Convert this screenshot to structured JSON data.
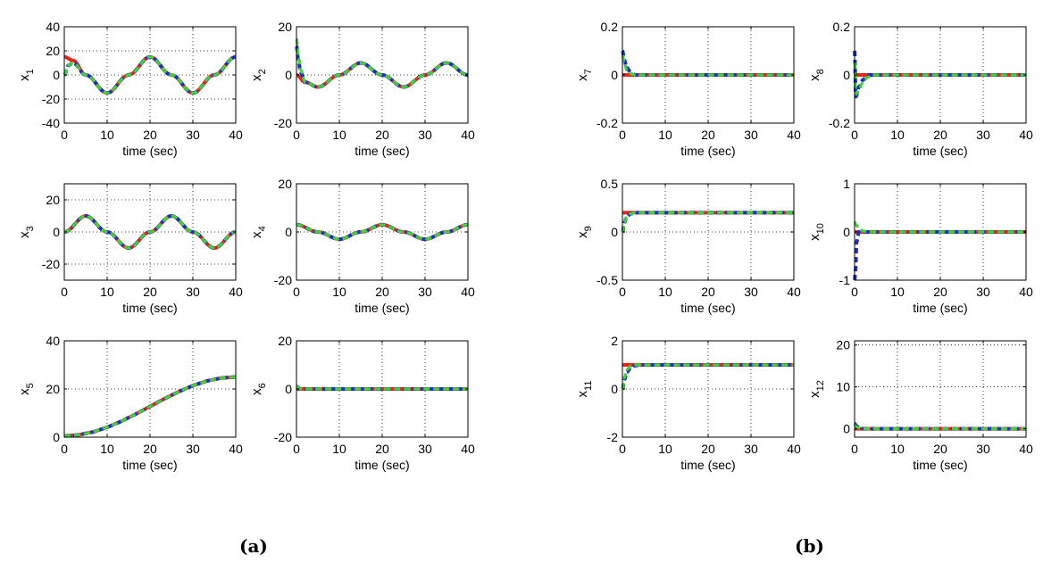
{
  "captions": [
    "(a)",
    "(b)"
  ],
  "colors": {
    "red": "#e8231c",
    "blue": "#1c2ec8",
    "green": "#3fd13a",
    "grid": "#000000",
    "text": "#000000"
  },
  "chart_data": [
    {
      "type": "line",
      "ylabel": "x",
      "sub": "1",
      "xlabel": "time (sec)",
      "xlim": [
        0,
        40
      ],
      "ylim": [
        -40,
        40
      ],
      "xticks": [
        0,
        10,
        20,
        30,
        40
      ],
      "yticks": [
        -40,
        -20,
        0,
        20,
        40
      ],
      "grid": true,
      "series": [
        {
          "values_x": [
            0,
            2,
            5,
            10,
            15,
            20,
            25,
            30,
            35,
            40
          ],
          "values_y": [
            15,
            12.1,
            0,
            -15,
            0,
            15,
            0,
            -15,
            0,
            15
          ]
        },
        {
          "values_x": [
            0,
            1,
            2,
            5,
            10,
            15,
            20,
            25,
            30,
            35,
            40
          ],
          "values_y": [
            0,
            8,
            10,
            0,
            -15,
            0,
            15,
            0,
            -15,
            0,
            15
          ]
        },
        {
          "values_x": [
            0,
            1,
            2,
            5,
            10,
            15,
            20,
            25,
            30,
            35,
            40
          ],
          "values_y": [
            0,
            8,
            10,
            0,
            -15,
            0,
            15,
            0,
            -15,
            0,
            15
          ]
        }
      ]
    },
    {
      "type": "line",
      "ylabel": "x",
      "sub": "2",
      "xlabel": "time (sec)",
      "xlim": [
        0,
        40
      ],
      "ylim": [
        -20,
        20
      ],
      "xticks": [
        0,
        10,
        20
      ],
      "xticks_extra": [
        30,
        40
      ],
      "yticks": [
        -20,
        0,
        20
      ],
      "grid": true,
      "series": [
        {
          "values_x": [
            0,
            2,
            5,
            10,
            15,
            20,
            25,
            30,
            35,
            40
          ],
          "values_y": [
            0,
            -3,
            -5,
            0,
            5,
            0,
            -5,
            0,
            5,
            0
          ]
        },
        {
          "values_x": [
            0,
            0.5,
            1,
            2,
            5,
            10,
            15,
            20,
            25,
            30,
            35,
            40
          ],
          "values_y": [
            12,
            5,
            1,
            -3,
            -5,
            0,
            5,
            0,
            -5,
            0,
            5,
            0
          ]
        },
        {
          "values_x": [
            0,
            0.5,
            1,
            2,
            5,
            10,
            15,
            20,
            25,
            30,
            35,
            40
          ],
          "values_y": [
            15,
            7,
            2,
            -3,
            -5,
            0,
            5,
            0,
            -5,
            0,
            5,
            0
          ]
        }
      ]
    },
    {
      "type": "line",
      "ylabel": "x",
      "sub": "3",
      "xlabel": "time (sec)",
      "xlim": [
        0,
        40
      ],
      "ylim": [
        -30,
        30
      ],
      "xticks": [
        0,
        10,
        20,
        30,
        40
      ],
      "yticks": [
        -20,
        0,
        20
      ],
      "grid": true,
      "series": [
        {
          "values_x": [
            0,
            5,
            10,
            15,
            20,
            25,
            30,
            35,
            40
          ],
          "values_y": [
            0,
            10,
            0,
            -10,
            0,
            10,
            0,
            -10,
            0
          ]
        },
        {
          "values_x": [
            0,
            5,
            10,
            15,
            20,
            25,
            30,
            35,
            40
          ],
          "values_y": [
            0,
            10,
            0,
            -10,
            0,
            10,
            0,
            -10,
            0
          ]
        },
        {
          "values_x": [
            0,
            5,
            10,
            15,
            20,
            25,
            30,
            35,
            40
          ],
          "values_y": [
            0,
            10,
            0,
            -10,
            0,
            10,
            0,
            -10,
            0
          ]
        }
      ]
    },
    {
      "type": "line",
      "ylabel": "x",
      "sub": "4",
      "xlabel": "time (sec)",
      "xlim": [
        0,
        40
      ],
      "ylim": [
        -20,
        20
      ],
      "xticks": [
        0,
        10,
        20,
        30,
        40
      ],
      "yticks": [
        -20,
        0,
        20
      ],
      "grid": true,
      "series": [
        {
          "values_x": [
            0,
            5,
            10,
            15,
            20,
            25,
            30,
            35,
            40
          ],
          "values_y": [
            3,
            0,
            -3,
            0,
            3,
            0,
            -3,
            0,
            3
          ]
        },
        {
          "values_x": [
            0,
            5,
            10,
            15,
            20,
            25,
            30,
            35,
            40
          ],
          "values_y": [
            3,
            0,
            -3,
            0,
            3,
            0,
            -3,
            0,
            3
          ]
        },
        {
          "values_x": [
            0,
            5,
            10,
            15,
            20,
            25,
            30,
            35,
            40
          ],
          "values_y": [
            3,
            0,
            -3,
            0,
            3,
            0,
            -3,
            0,
            3
          ]
        }
      ]
    },
    {
      "type": "line",
      "ylabel": "x",
      "sub": "5",
      "xlabel": "time (sec)",
      "xlim": [
        0,
        40
      ],
      "ylim": [
        0,
        40
      ],
      "xticks": [
        0,
        10,
        20,
        30,
        40
      ],
      "yticks": [
        0,
        20,
        40
      ],
      "grid": true,
      "series": [
        {
          "values_x": [
            0,
            40
          ],
          "values_y": [
            0.5,
            25
          ]
        },
        {
          "values_x": [
            0,
            40
          ],
          "values_y": [
            0.5,
            25
          ]
        },
        {
          "values_x": [
            0,
            40
          ],
          "values_y": [
            0.5,
            25
          ]
        }
      ]
    },
    {
      "type": "line",
      "ylabel": "x",
      "sub": "6",
      "xlabel": "time (sec)",
      "xlim": [
        0,
        40
      ],
      "ylim": [
        -20,
        20
      ],
      "xticks": [
        0,
        10,
        20,
        30,
        40
      ],
      "yticks": [
        -20,
        0,
        20
      ],
      "grid": true,
      "series": [
        {
          "values_x": [
            0,
            40
          ],
          "values_y": [
            0,
            0
          ]
        },
        {
          "values_x": [
            0,
            1,
            40
          ],
          "values_y": [
            1,
            0,
            0
          ]
        },
        {
          "values_x": [
            0,
            1,
            40
          ],
          "values_y": [
            1,
            0,
            0
          ]
        }
      ]
    },
    {
      "type": "line",
      "ylabel": "x",
      "sub": "7",
      "xlabel": "time (sec)",
      "xlim": [
        0,
        40
      ],
      "ylim": [
        -0.2,
        0.2
      ],
      "xticks": [
        0,
        10,
        20,
        30,
        40
      ],
      "yticks": [
        -0.2,
        0,
        0.2
      ],
      "grid": true,
      "series": [
        {
          "values_x": [
            0,
            40
          ],
          "values_y": [
            0,
            0
          ]
        },
        {
          "values_x": [
            0,
            0.5,
            1,
            2,
            3,
            40
          ],
          "values_y": [
            0.1,
            0.06,
            0.03,
            0.01,
            0,
            0
          ]
        },
        {
          "values_x": [
            0,
            0.5,
            1,
            2,
            3,
            40
          ],
          "values_y": [
            0.08,
            0.05,
            0.02,
            0.005,
            0,
            0
          ]
        }
      ]
    },
    {
      "type": "line",
      "ylabel": "x",
      "sub": "8",
      "xlabel": "time (sec)",
      "xlim": [
        0,
        40
      ],
      "ylim": [
        -0.2,
        0.2
      ],
      "xticks": [
        0,
        10,
        20,
        30,
        40
      ],
      "yticks": [
        -0.2,
        0,
        0.2
      ],
      "grid": true,
      "series": [
        {
          "values_x": [
            0,
            40
          ],
          "values_y": [
            0,
            0
          ]
        },
        {
          "values_x": [
            0,
            0.3,
            1,
            2,
            3,
            40
          ],
          "values_y": [
            0.1,
            -0.09,
            -0.05,
            -0.02,
            0,
            0
          ]
        },
        {
          "values_x": [
            0,
            0.3,
            1,
            2,
            3,
            4,
            40
          ],
          "values_y": [
            0.05,
            -0.08,
            -0.06,
            -0.03,
            -0.01,
            0,
            0
          ]
        }
      ]
    },
    {
      "type": "line",
      "ylabel": "x",
      "sub": "9",
      "xlabel": "time (sec)",
      "xlim": [
        0,
        40
      ],
      "ylim": [
        -0.5,
        0.5
      ],
      "xticks": [
        0,
        10,
        20,
        30,
        40
      ],
      "yticks": [
        -0.5,
        0,
        0.5
      ],
      "grid": true,
      "series": [
        {
          "values_x": [
            0,
            40
          ],
          "values_y": [
            0.2,
            0.2
          ]
        },
        {
          "values_x": [
            0,
            0.5,
            1,
            2,
            3,
            40
          ],
          "values_y": [
            0,
            0.1,
            0.16,
            0.19,
            0.2,
            0.2
          ]
        },
        {
          "values_x": [
            0,
            0.5,
            1,
            2,
            3,
            40
          ],
          "values_y": [
            0,
            0.1,
            0.16,
            0.19,
            0.2,
            0.2
          ]
        }
      ]
    },
    {
      "type": "line",
      "ylabel": "x",
      "sub": "10",
      "xlabel": "time (sec)",
      "xlim": [
        0,
        40
      ],
      "ylim": [
        -1,
        1
      ],
      "xticks": [
        0,
        10,
        20,
        30,
        40
      ],
      "yticks": [
        -1,
        0,
        1
      ],
      "grid": true,
      "series": [
        {
          "values_x": [
            0,
            40
          ],
          "values_y": [
            0,
            0
          ]
        },
        {
          "values_x": [
            0,
            0.2,
            0.5,
            1,
            2,
            40
          ],
          "values_y": [
            -1,
            -0.8,
            -0.2,
            0,
            0,
            0
          ]
        },
        {
          "values_x": [
            0,
            0.3,
            1,
            2,
            3,
            40
          ],
          "values_y": [
            0.2,
            0.15,
            0.08,
            0.02,
            0,
            0
          ]
        }
      ]
    },
    {
      "type": "line",
      "ylabel": "x",
      "sub": "11",
      "xlabel": "time (sec)",
      "xlim": [
        0,
        40
      ],
      "ylim": [
        -2,
        2
      ],
      "xticks": [
        0,
        10,
        20,
        30,
        40
      ],
      "yticks": [
        -2,
        0,
        2
      ],
      "grid": true,
      "series": [
        {
          "values_x": [
            0,
            40
          ],
          "values_y": [
            1,
            1
          ]
        },
        {
          "values_x": [
            0,
            0.5,
            1,
            2,
            3,
            4,
            40
          ],
          "values_y": [
            0,
            0.4,
            0.7,
            0.9,
            0.97,
            1,
            1
          ]
        },
        {
          "values_x": [
            0,
            0.5,
            1,
            2,
            3,
            40
          ],
          "values_y": [
            0,
            0.5,
            0.8,
            0.95,
            1,
            1
          ]
        }
      ]
    },
    {
      "type": "line",
      "ylabel": "x",
      "sub": "12",
      "xlabel": "time (sec)",
      "xlim": [
        0,
        40
      ],
      "ylim": [
        -2,
        21
      ],
      "xticks": [
        0,
        10,
        20,
        30,
        40
      ],
      "yticks": [
        0,
        10,
        20
      ],
      "grid": true,
      "series": [
        {
          "values_x": [
            0,
            40
          ],
          "values_y": [
            0,
            0
          ]
        },
        {
          "values_x": [
            0,
            0.5,
            1,
            2,
            40
          ],
          "values_y": [
            1.2,
            0.6,
            0.3,
            0,
            0
          ]
        },
        {
          "values_x": [
            0,
            0.5,
            1,
            2,
            40
          ],
          "values_y": [
            0.8,
            0.4,
            0.2,
            0,
            0
          ]
        }
      ]
    }
  ]
}
